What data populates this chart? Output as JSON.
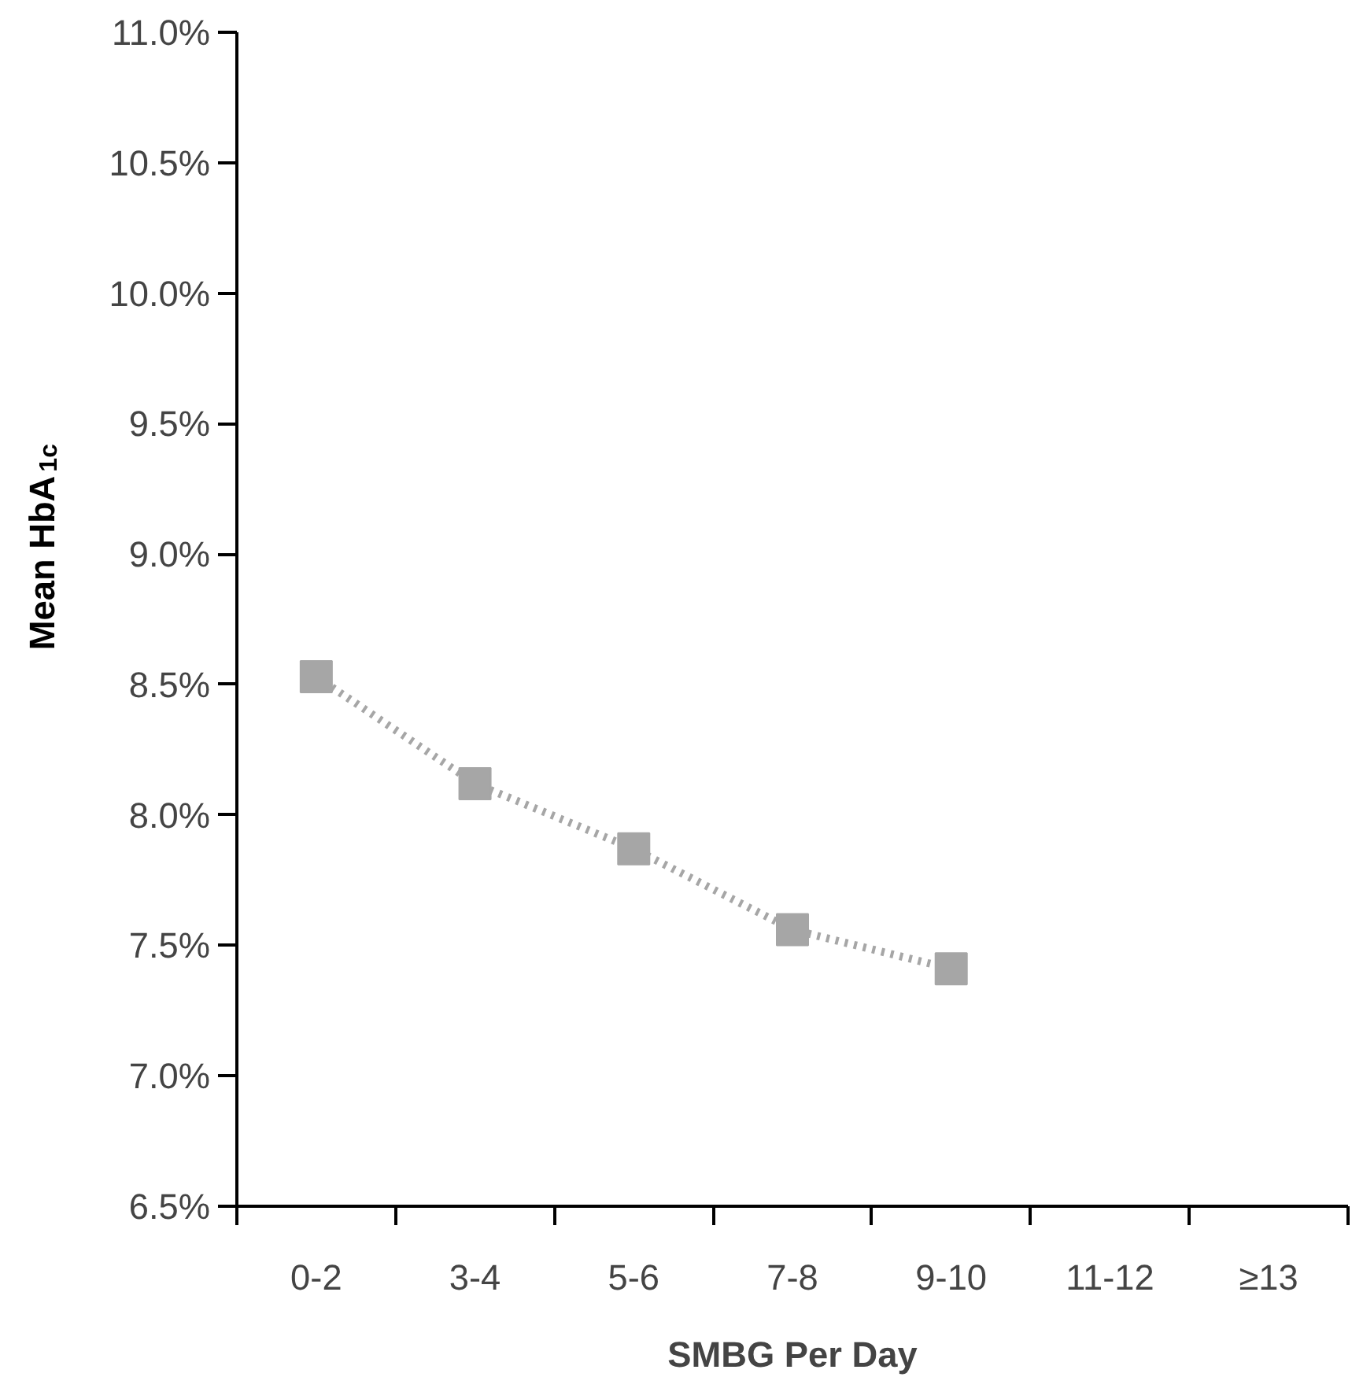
{
  "chart_data": {
    "type": "line",
    "xlabel": "SMBG Per Day",
    "ylabel": "Mean HbA$_{1c}$",
    "categories": [
      "0-2",
      "3-4",
      "5-6",
      "7-8",
      "9-10",
      "11-12",
      "≥13"
    ],
    "series": [
      {
        "color": "#a6a6a6",
        "values": [
          8.53,
          8.12,
          7.87,
          7.56,
          7.41,
          null,
          null
        ]
      }
    ],
    "ylim": [
      6.5,
      11.0
    ],
    "yticks": [
      {
        "value": 6.5,
        "label": "6.5%"
      },
      {
        "value": 7.0,
        "label": "7.0%"
      },
      {
        "value": 7.5,
        "label": "7.5%"
      },
      {
        "value": 8.0,
        "label": "8.0%"
      },
      {
        "value": 8.5,
        "label": "8.5%"
      },
      {
        "value": 9.0,
        "label": "9.0%"
      },
      {
        "value": 9.5,
        "label": "9.5%"
      },
      {
        "value": 10.0,
        "label": "10.0%"
      },
      {
        "value": 10.5,
        "label": "10.5%"
      },
      {
        "value": 11.0,
        "label": "11.0%"
      }
    ],
    "grid": false,
    "marker": "square",
    "line_style": "dotted"
  }
}
